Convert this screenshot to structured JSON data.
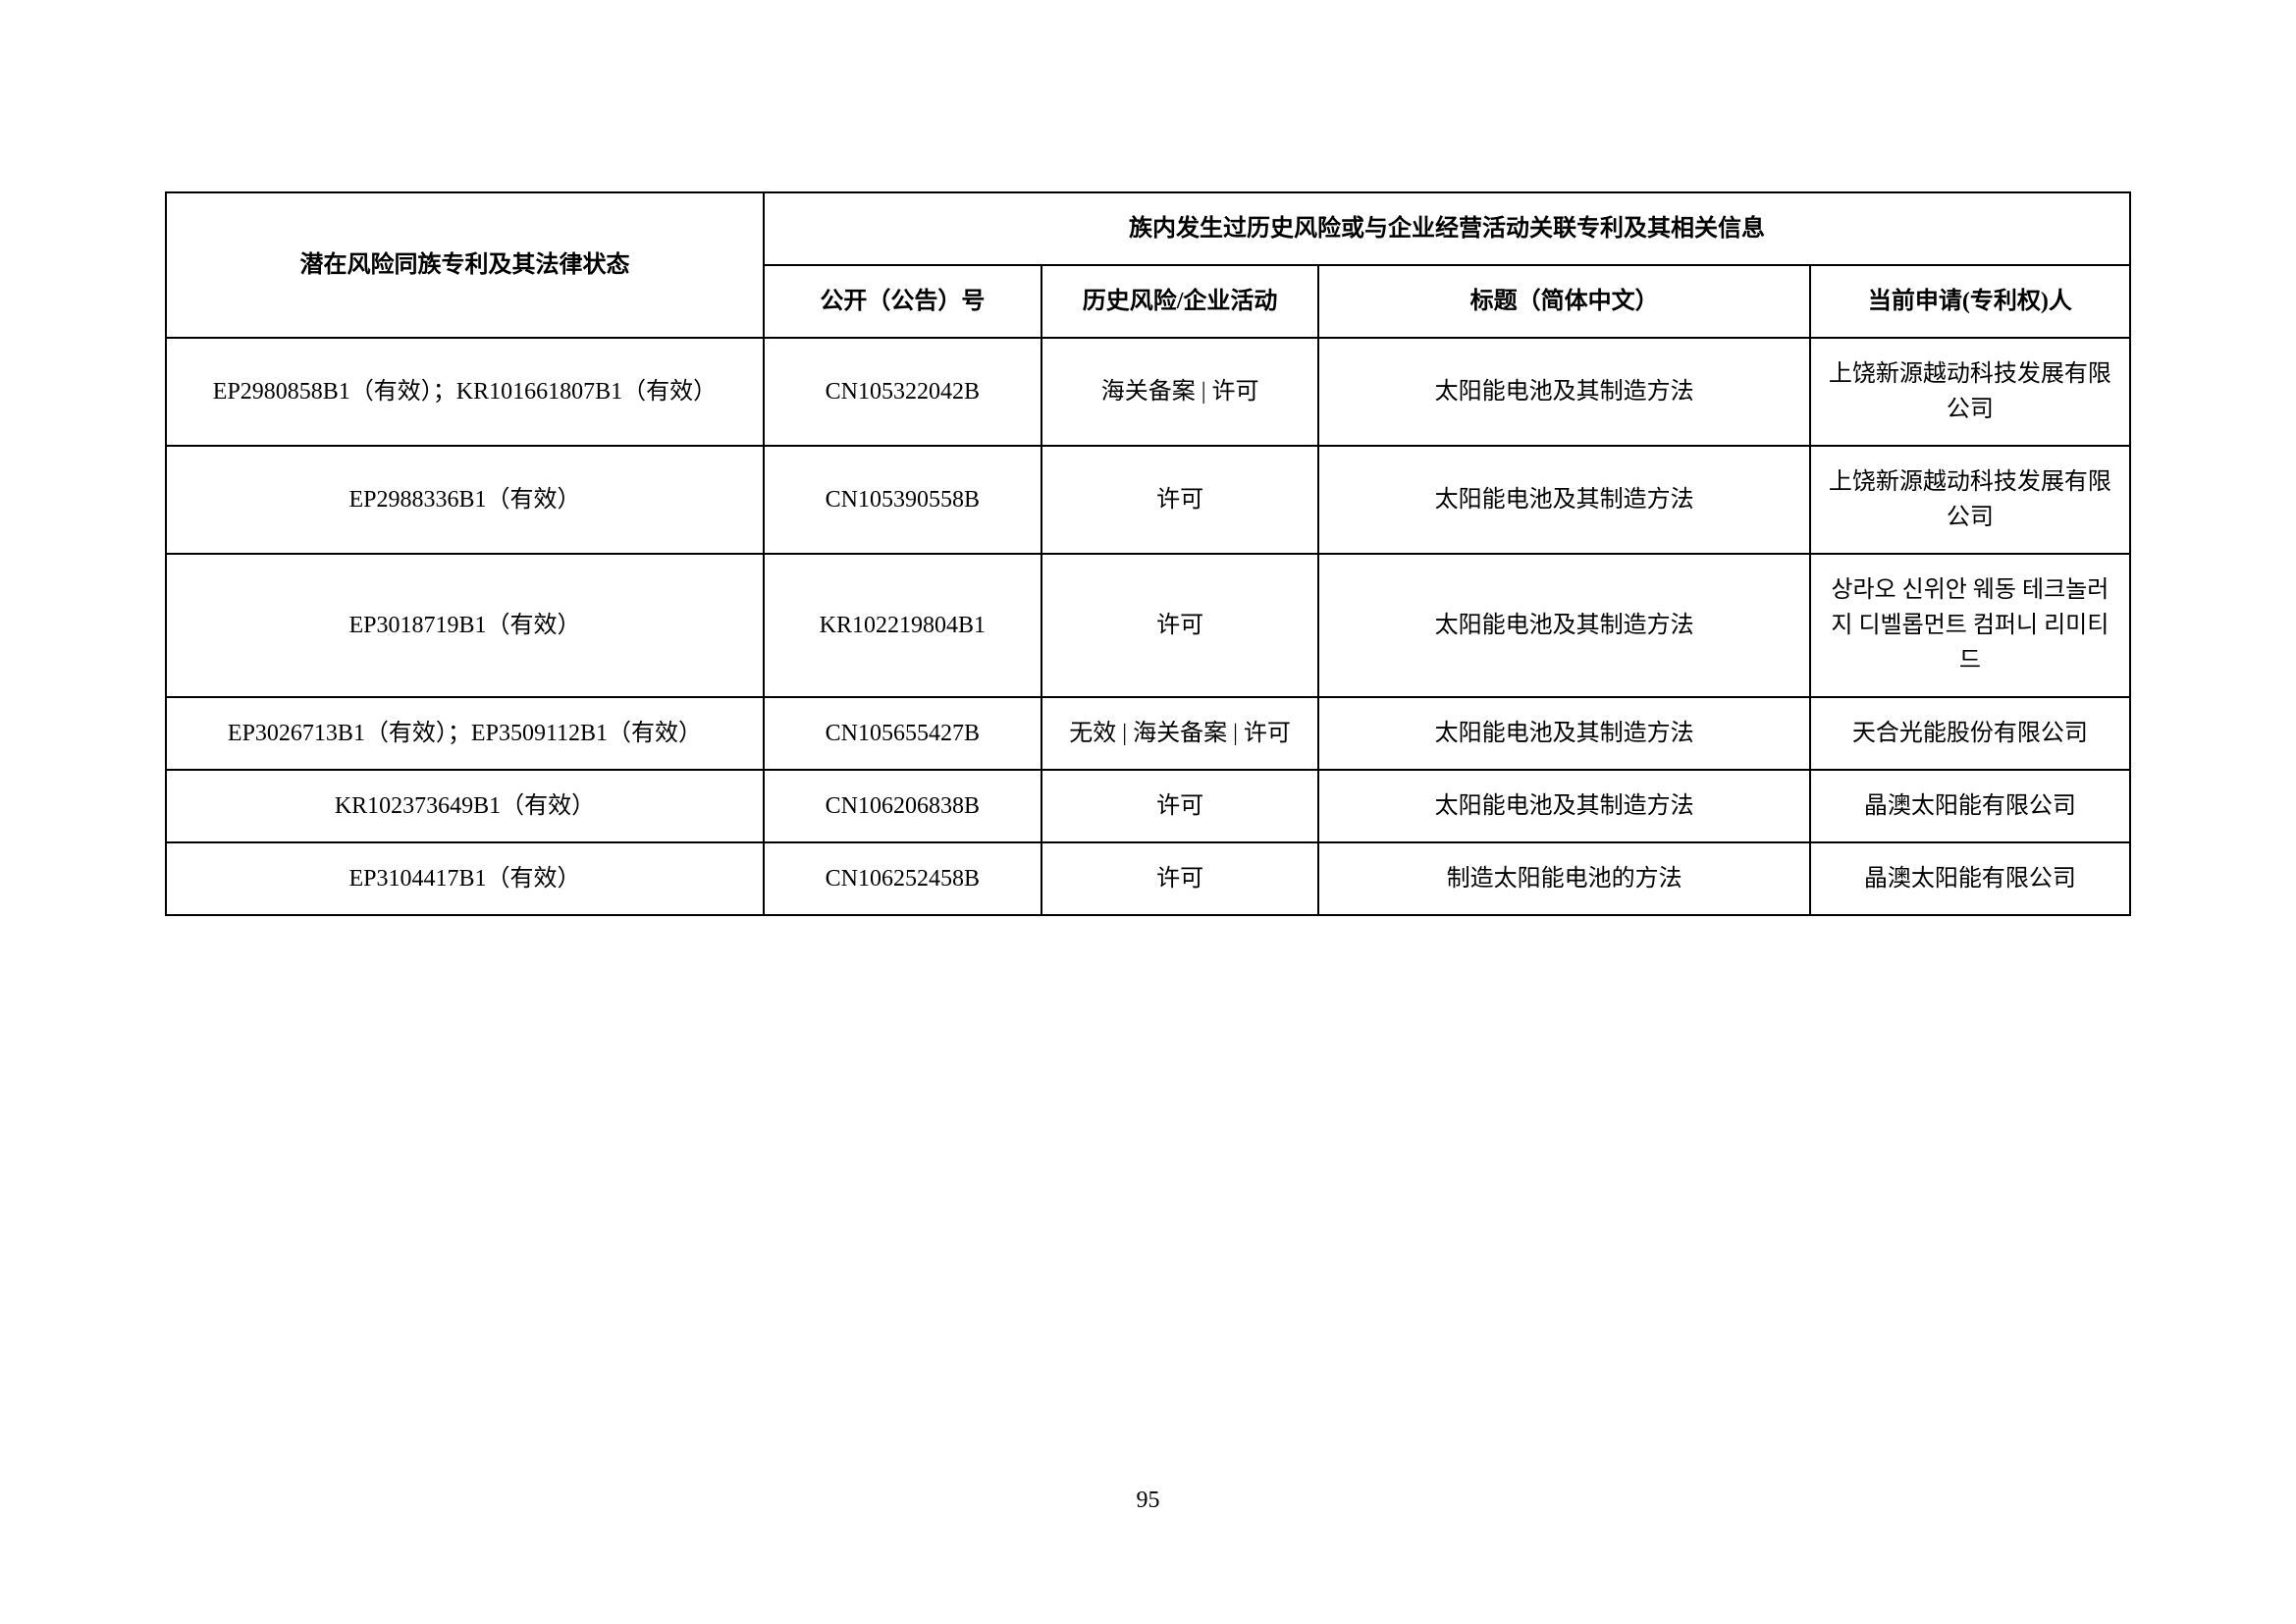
{
  "table": {
    "columns": {
      "col1_header": "潜在风险同族专利及其法律状态",
      "col_group_header": "族内发生过历史风险或与企业经营活动关联专利及其相关信息",
      "col2_header": "公开（公告）号",
      "col3_header": "历史风险/企业活动",
      "col4_header": "标题（简体中文）",
      "col5_header": "当前申请(专利权)人"
    },
    "rows": [
      {
        "patent_family": "EP2980858B1（有效）；KR101661807B1（有效）",
        "publication_no": "CN105322042B",
        "risk_activity": "海关备案 | 许可",
        "title": "太阳能电池及其制造方法",
        "applicant": "上饶新源越动科技发展有限公司"
      },
      {
        "patent_family": "EP2988336B1（有效）",
        "publication_no": "CN105390558B",
        "risk_activity": "许可",
        "title": "太阳能电池及其制造方法",
        "applicant": "上饶新源越动科技发展有限公司"
      },
      {
        "patent_family": "EP3018719B1（有效）",
        "publication_no": "KR102219804B1",
        "risk_activity": "许可",
        "title": "太阳能电池及其制造方法",
        "applicant": "상라오 신위안 웨동 테크놀러지 디벨롭먼트 컴퍼니 리미티드"
      },
      {
        "patent_family": "EP3026713B1（有效）；EP3509112B1（有效）",
        "publication_no": "CN105655427B",
        "risk_activity": "无效 | 海关备案 | 许可",
        "title": "太阳能电池及其制造方法",
        "applicant": "天合光能股份有限公司"
      },
      {
        "patent_family": "KR102373649B1（有效）",
        "publication_no": "CN106206838B",
        "risk_activity": "许可",
        "title": "太阳能电池及其制造方法",
        "applicant": "晶澳太阳能有限公司"
      },
      {
        "patent_family": "EP3104417B1（有效）",
        "publication_no": "CN106252458B",
        "risk_activity": "许可",
        "title": "制造太阳能电池的方法",
        "applicant": "晶澳太阳能有限公司"
      }
    ]
  },
  "page_number": "95"
}
